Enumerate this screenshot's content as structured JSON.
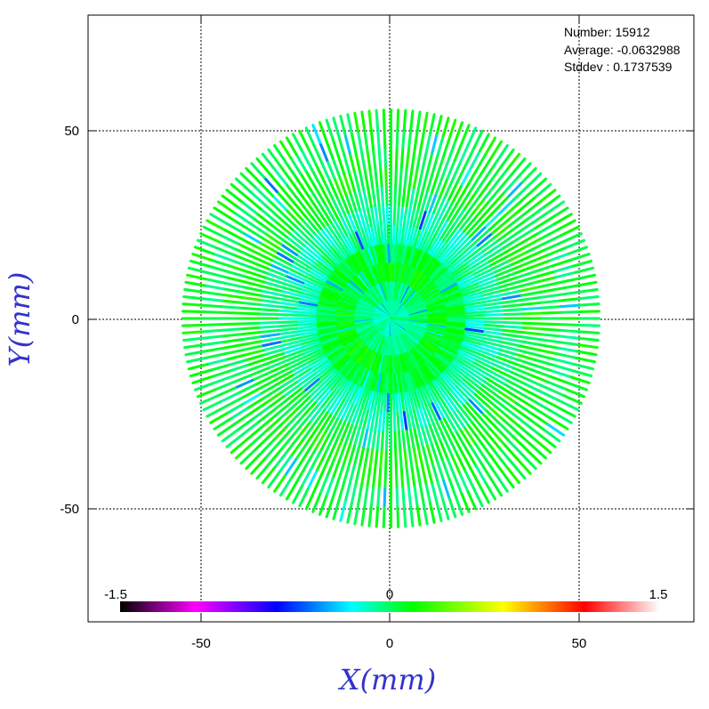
{
  "chart_data": {
    "type": "scatter",
    "xlabel": "X(mm)",
    "ylabel": "Y(mm)",
    "xlim": [
      -80,
      80
    ],
    "ylim": [
      -80,
      80
    ],
    "x_ticks": [
      -50,
      0,
      50
    ],
    "y_ticks": [
      50,
      0,
      -50
    ],
    "grid": true,
    "stats": {
      "number": "Number: 15912",
      "average": "Average: -0.0632988",
      "stddev": "Stddev : 0.1737539"
    },
    "colorbar": {
      "min_label": "-1.5",
      "mid_label": "0",
      "max_label": "1.5",
      "range": [
        -1.5,
        1.5
      ],
      "colors": [
        "#000000",
        "#ff00ff",
        "#0000ff",
        "#00ffff",
        "#00ff00",
        "#ffff00",
        "#ff0000",
        "#ffffff"
      ]
    },
    "pattern": {
      "description_kind": "radial spokes",
      "spoke_count": 180,
      "radius_mm": 55,
      "ring_radii_mm": [
        14,
        38
      ]
    }
  }
}
